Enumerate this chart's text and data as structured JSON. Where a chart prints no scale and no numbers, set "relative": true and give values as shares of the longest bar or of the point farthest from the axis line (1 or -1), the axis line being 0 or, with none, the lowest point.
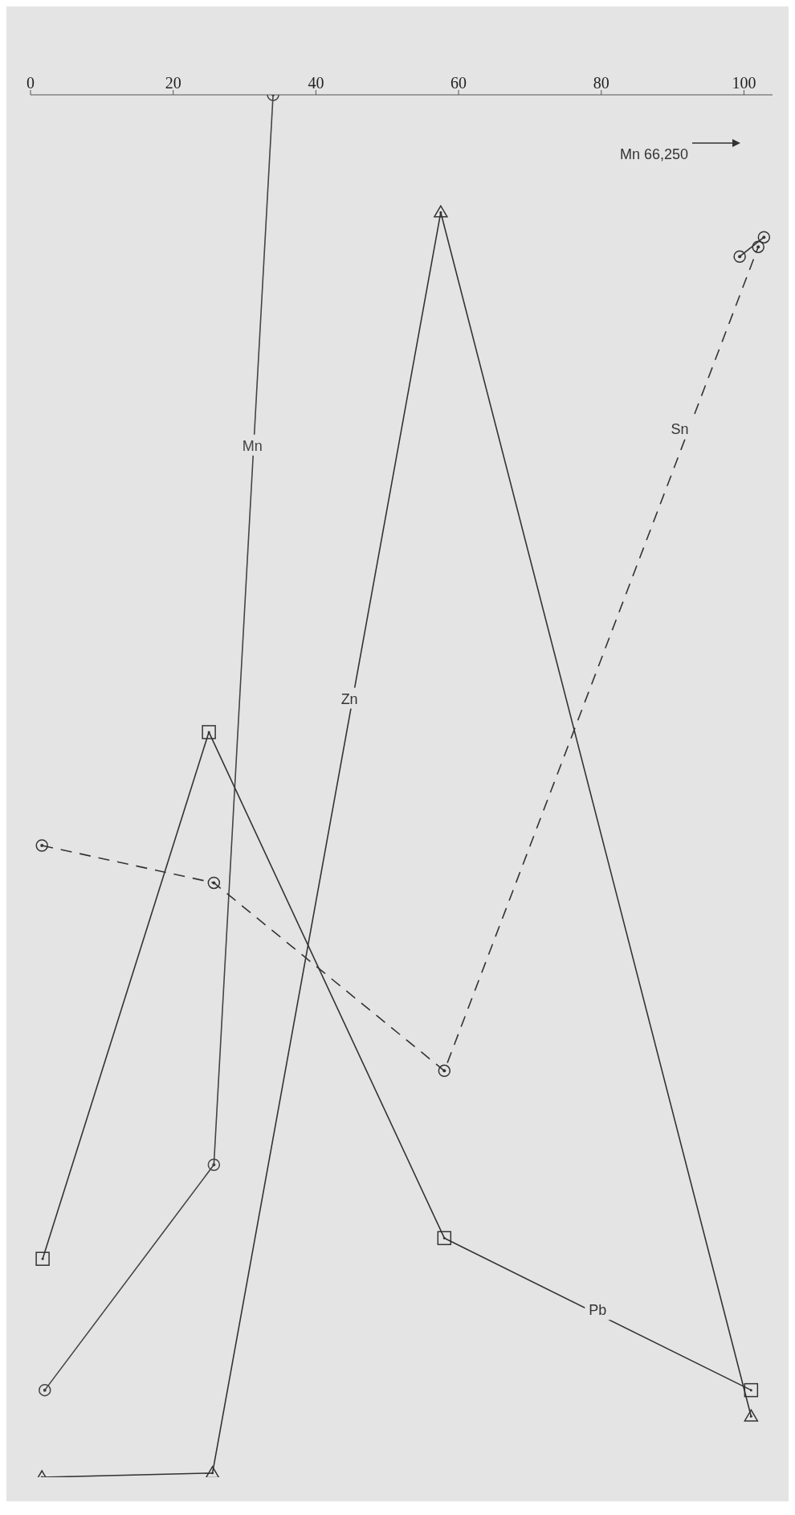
{
  "chart_data": {
    "type": "line",
    "relative": true,
    "xlim": [
      0,
      104
    ],
    "xticks": [
      0,
      20,
      40,
      60,
      80,
      100
    ],
    "annotations": [
      "Mn 66,250"
    ],
    "series": [
      {
        "name": "Zn",
        "color": "#333333",
        "marker": "triangle",
        "line_style": "solid",
        "x": [
          1.6,
          25.5,
          57.5,
          101
        ],
        "values": [
          0,
          0.003,
          0.915,
          0.044
        ]
      },
      {
        "name": "Mn",
        "color": "#444444",
        "marker": "circle",
        "line_style": "solid",
        "x": [
          34,
          25.7,
          2
        ],
        "values": [
          1,
          0.226,
          0.063
        ]
      },
      {
        "name": "Sn",
        "color": "#333333",
        "marker": "circle",
        "line_style": "dashed",
        "x": [
          1.6,
          25.7,
          58,
          102
        ],
        "values": [
          0.457,
          0.43,
          0.294,
          0.89
        ]
      },
      {
        "name": "Pb",
        "color": "#333333",
        "marker": "square",
        "line_style": "solid",
        "x": [
          1.7,
          25,
          58,
          101
        ],
        "values": [
          0.158,
          0.539,
          0.173,
          0.063
        ]
      },
      {
        "color": "#333333",
        "marker": "circle",
        "line_style": "solid",
        "x": [
          99.4,
          102.8
        ],
        "values": [
          0.883,
          0.897
        ]
      }
    ]
  }
}
